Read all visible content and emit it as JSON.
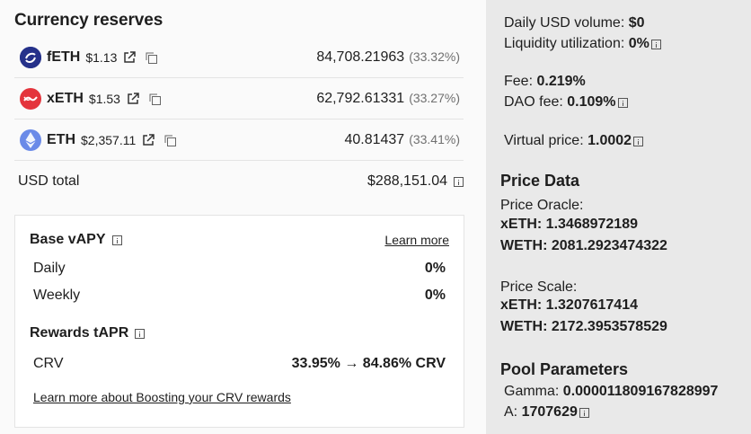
{
  "reserves": {
    "title": "Currency reserves",
    "coins": [
      {
        "symbol": "fETH",
        "price": "$1.13",
        "amount": "84,708.21963",
        "pct": "(33.32%)",
        "icon": "feth-icon",
        "color": "#2a3a8f"
      },
      {
        "symbol": "xETH",
        "price": "$1.53",
        "amount": "62,792.61331",
        "pct": "(33.27%)",
        "icon": "xeth-icon",
        "color": "#e4343c"
      },
      {
        "symbol": "ETH",
        "price": "$2,357.11",
        "amount": "40.81437",
        "pct": "(33.41%)",
        "icon": "eth-icon",
        "color": "#6a8ae8"
      }
    ],
    "usd_total_label": "USD total",
    "usd_total_value": "$288,151.04"
  },
  "apy": {
    "base_title": "Base vAPY",
    "learn_more": "Learn more",
    "daily_label": "Daily",
    "daily_value": "0%",
    "weekly_label": "Weekly",
    "weekly_value": "0%",
    "rewards_title": "Rewards tAPR",
    "crv_label": "CRV",
    "crv_value": "33.95% → 84.86% CRV",
    "boost_link": "Learn more about Boosting your CRV rewards"
  },
  "stats": {
    "daily_volume_label": "Daily USD volume:",
    "daily_volume_value": "$0",
    "liquidity_label": "Liquidity utilization:",
    "liquidity_value": "0%",
    "fee_label": "Fee:",
    "fee_value": "0.219%",
    "dao_fee_label": "DAO fee:",
    "dao_fee_value": "0.109%",
    "virtual_price_label": "Virtual price:",
    "virtual_price_value": "1.0002"
  },
  "price_data": {
    "title": "Price Data",
    "oracle_label": "Price Oracle:",
    "oracle_xeth": "xETH: 1.3468972189",
    "oracle_weth": "WETH: 2081.2923474322",
    "scale_label": "Price Scale:",
    "scale_xeth": "xETH: 1.3207617414",
    "scale_weth": "WETH: 2172.3953578529"
  },
  "pool_params": {
    "title": "Pool Parameters",
    "gamma_label": "Gamma:",
    "gamma_value": "0.000011809167828997",
    "a_label": "A:",
    "a_value": "1707629"
  }
}
